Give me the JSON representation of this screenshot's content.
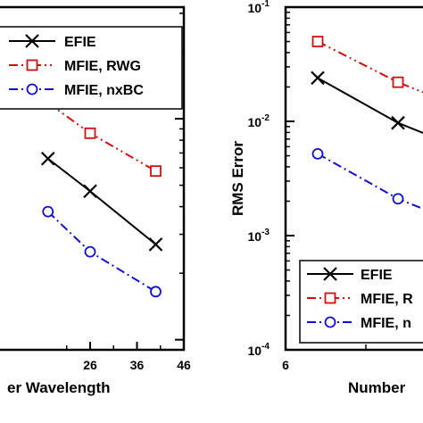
{
  "chart_data": [
    {
      "type": "line",
      "xlabel": "er Wavelength",
      "ylabel": "",
      "xlim": [
        6,
        46
      ],
      "x_ticks": [
        "26",
        "36",
        "46"
      ],
      "series": [
        {
          "name": "EFIE",
          "color": "#000000",
          "marker": "x",
          "dash": "solid",
          "x": [
            17,
            26,
            40
          ],
          "y": [
            0.0066,
            0.0047,
            0.0027
          ]
        },
        {
          "name": "MFIE, RWG",
          "color": "#d01010",
          "marker": "square",
          "dash": "dashdotdot",
          "x": [
            17,
            26,
            40
          ],
          "y": [
            0.0118,
            0.0086,
            0.0058
          ]
        },
        {
          "name": "MFIE, nxBC",
          "color": "#1010c8",
          "marker": "circle",
          "dash": "dashdot",
          "x": [
            17,
            26,
            40
          ],
          "y": [
            0.0038,
            0.0025,
            0.00165
          ]
        }
      ]
    },
    {
      "type": "line",
      "xlabel": "Number",
      "ylabel": "RMS Error",
      "yscale": "log",
      "ylim": [
        0.0001,
        0.1
      ],
      "y_ticks": [
        "10-1",
        "10-2",
        "10-3",
        "10-4"
      ],
      "x_ticks": [
        "6"
      ],
      "series": [
        {
          "name": "EFIE",
          "color": "#000000",
          "marker": "x",
          "dash": "solid",
          "x": [
            8,
            13
          ],
          "y": [
            0.024,
            0.0097
          ]
        },
        {
          "name": "MFIE, RWG",
          "label": "MFIE, R",
          "color": "#d01010",
          "marker": "square",
          "dash": "dashdotdot",
          "x": [
            8,
            13
          ],
          "y": [
            0.05,
            0.022
          ]
        },
        {
          "name": "MFIE, nxBC",
          "label": "MFIE, n",
          "color": "#1010c8",
          "marker": "circle",
          "dash": "dashdot",
          "x": [
            8,
            13
          ],
          "y": [
            0.0052,
            0.0021
          ]
        }
      ]
    }
  ]
}
